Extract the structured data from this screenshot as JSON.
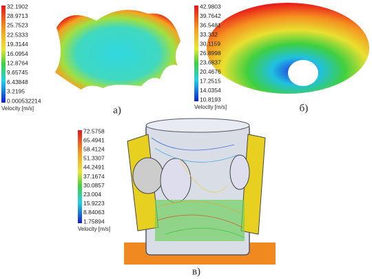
{
  "panels": [
    {
      "caption": "а)",
      "unit": "Velocity [m/s]",
      "ticks": [
        "32.1902",
        "28.9713",
        "25.7523",
        "22.5333",
        "19.3144",
        "16.0954",
        "12.8764",
        "9.65745",
        "6.43848",
        "3.2195",
        "0.000532214"
      ]
    },
    {
      "caption": "б)",
      "unit": "Velocity [m/s]",
      "ticks": [
        "42.9803",
        "39.7642",
        "36.5481",
        "33.332",
        "30.1159",
        "26.8998",
        "23.6837",
        "20.4676",
        "17.2515",
        "14.0354",
        "10.8193"
      ]
    },
    {
      "caption": "в)",
      "unit": "Velocity [m/s]",
      "ticks": [
        "72.5758",
        "65.4941",
        "58.4124",
        "51.3307",
        "44.2491",
        "37.1674",
        "30.0857",
        "23.004",
        "15.9223",
        "8.84063",
        "1.75894"
      ]
    }
  ]
}
